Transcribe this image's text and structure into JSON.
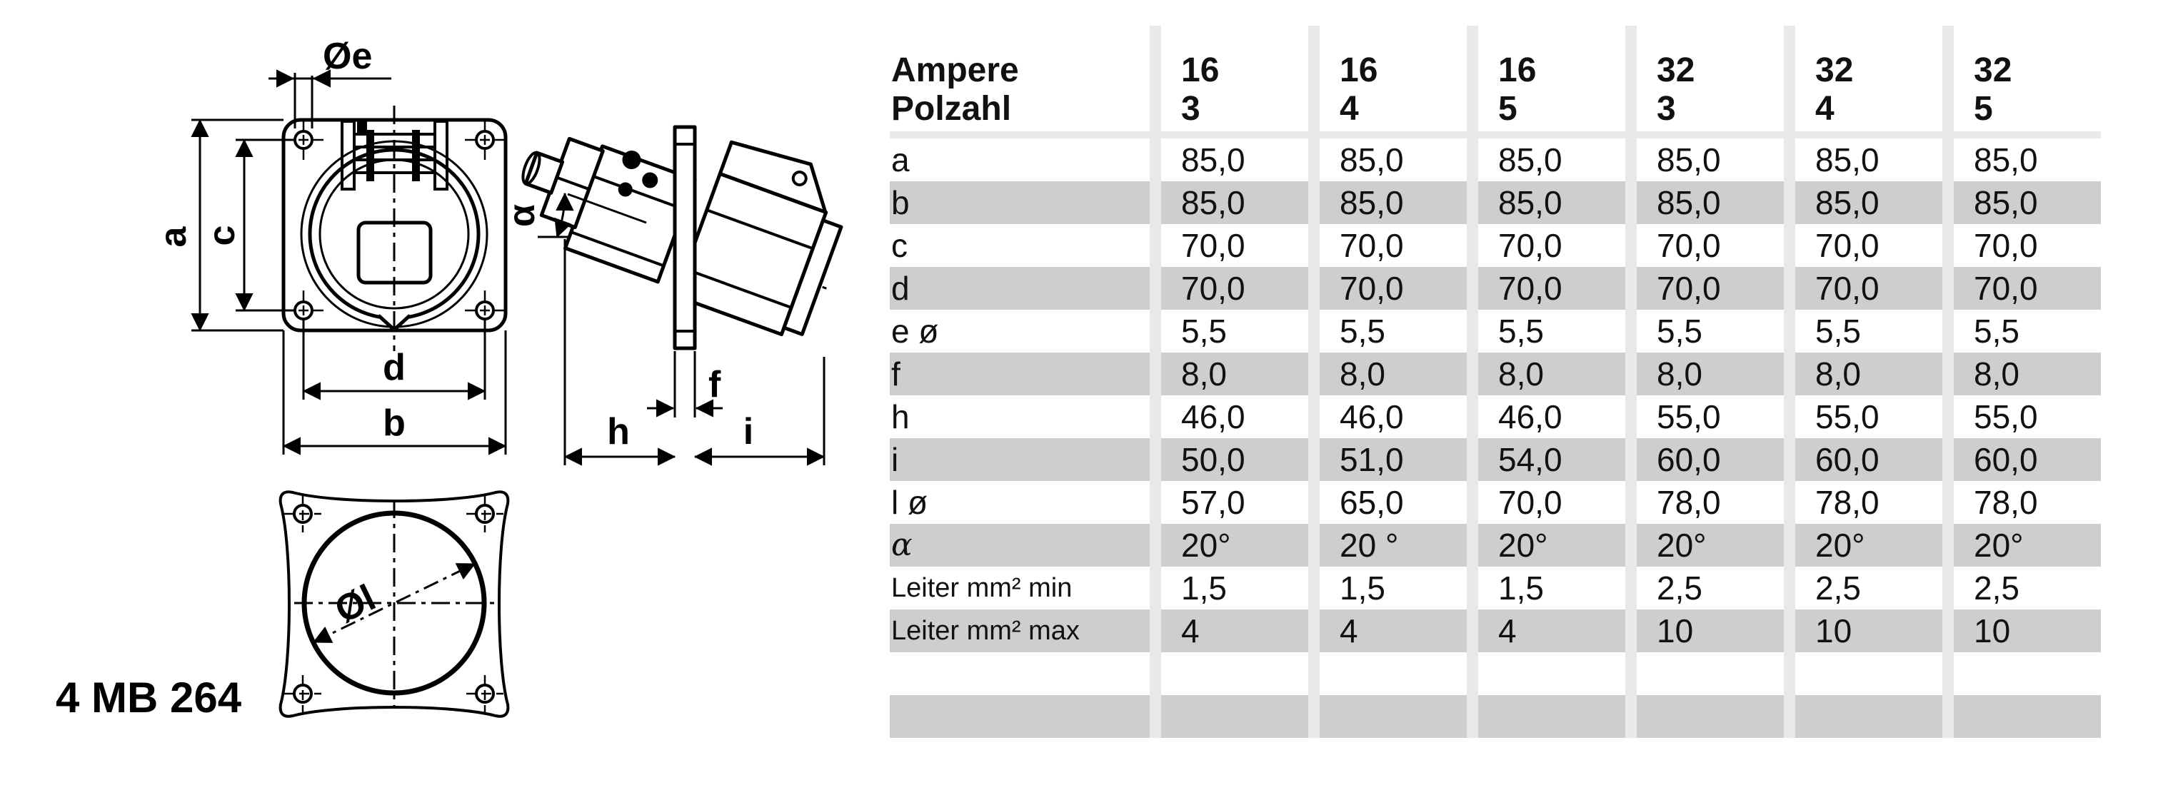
{
  "part_number": "4 MB 264",
  "drawing": {
    "front_view_labels": {
      "oe": "Øe",
      "a": "a",
      "c": "c",
      "d": "d",
      "b": "b"
    },
    "side_view_labels": {
      "alpha": "α",
      "f": "f",
      "h": "h",
      "i": "i"
    },
    "bottom_view_labels": {
      "ol": "Øl"
    }
  },
  "table": {
    "row_header": [
      "Ampere",
      "Polzahl"
    ],
    "columns": [
      [
        "16",
        "3"
      ],
      [
        "16",
        "4"
      ],
      [
        "16",
        "5"
      ],
      [
        "32",
        "3"
      ],
      [
        "32",
        "4"
      ],
      [
        "32",
        "5"
      ]
    ],
    "rows": [
      {
        "label": "a",
        "values": [
          "85,0",
          "85,0",
          "85,0",
          "85,0",
          "85,0",
          "85,0"
        ]
      },
      {
        "label": "b",
        "values": [
          "85,0",
          "85,0",
          "85,0",
          "85,0",
          "85,0",
          "85,0"
        ]
      },
      {
        "label": "c",
        "values": [
          "70,0",
          "70,0",
          "70,0",
          "70,0",
          "70,0",
          "70,0"
        ]
      },
      {
        "label": "d",
        "values": [
          "70,0",
          "70,0",
          "70,0",
          "70,0",
          "70,0",
          "70,0"
        ]
      },
      {
        "label": "e ø",
        "values": [
          "5,5",
          "5,5",
          "5,5",
          "5,5",
          "5,5",
          "5,5"
        ]
      },
      {
        "label": "f",
        "values": [
          "8,0",
          "8,0",
          "8,0",
          "8,0",
          "8,0",
          "8,0"
        ]
      },
      {
        "label": "h",
        "values": [
          "46,0",
          "46,0",
          "46,0",
          "55,0",
          "55,0",
          "55,0"
        ]
      },
      {
        "label": "i",
        "values": [
          "50,0",
          "51,0",
          "54,0",
          "60,0",
          "60,0",
          "60,0"
        ]
      },
      {
        "label": "l ø",
        "values": [
          "57,0",
          "65,0",
          "70,0",
          "78,0",
          "78,0",
          "78,0"
        ]
      },
      {
        "label": "α",
        "values": [
          "20°",
          "20 °",
          "20°",
          "20°",
          "20°",
          "20°"
        ]
      },
      {
        "label": "Leiter mm² min",
        "values": [
          "1,5",
          "1,5",
          "1,5",
          "2,5",
          "2,5",
          "2,5"
        ]
      },
      {
        "label": "Leiter mm² max",
        "values": [
          "4",
          "4",
          "4",
          "10",
          "10",
          "10"
        ]
      },
      {
        "label": "",
        "values": [
          "",
          "",
          "",
          "",
          "",
          ""
        ]
      },
      {
        "label": "",
        "values": [
          "",
          "",
          "",
          "",
          "",
          ""
        ]
      }
    ]
  },
  "colors": {
    "row_alt": "#cecece",
    "separator": "#e9e9e9",
    "line": "#000000",
    "background": "#ffffff"
  }
}
